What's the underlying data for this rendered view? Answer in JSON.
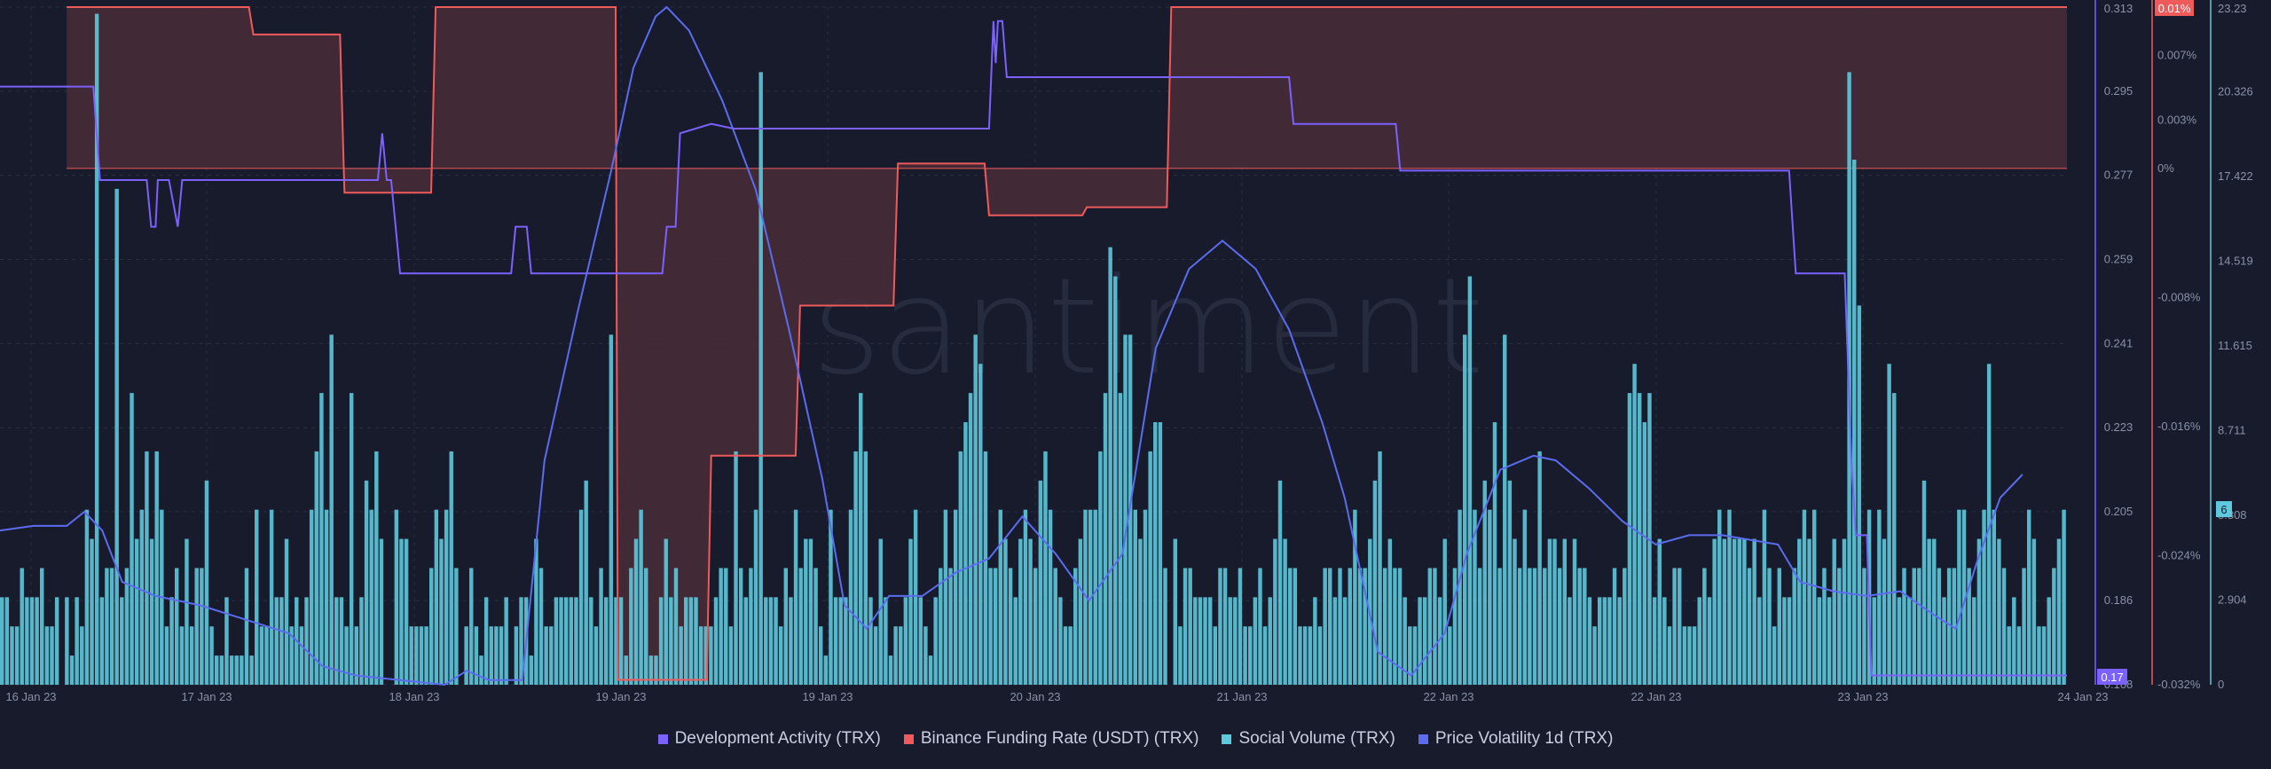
{
  "watermark": "santiment",
  "colors": {
    "background": "#171b2b",
    "grid": "#2a2f42",
    "dev_activity": "#7b61ff",
    "funding_rate": "#ef5b5b",
    "funding_fill": "#4a2b38",
    "social_volume": "#5ec9dc",
    "price_volatility": "#5c6cf0"
  },
  "legend": {
    "dev": "Development Activity (TRX)",
    "funding": "Binance Funding Rate (USDT) (TRX)",
    "social": "Social Volume (TRX)",
    "volatility": "Price Volatility 1d (TRX)"
  },
  "badges": {
    "dev_value": "0.17",
    "funding_value": "0.01%",
    "social_value": "6"
  },
  "chart_data": {
    "type": "line",
    "x_ticks": [
      "16 Jan 23",
      "17 Jan 23",
      "18 Jan 23",
      "19 Jan 23",
      "19 Jan 23",
      "20 Jan 23",
      "21 Jan 23",
      "22 Jan 23",
      "22 Jan 23",
      "23 Jan 23",
      "24 Jan 23"
    ],
    "x_range_days": [
      0,
      8
    ],
    "axes": {
      "dev_activity": {
        "ticks": [
          "0.313",
          "0.295",
          "0.277",
          "0.259",
          "0.241",
          "0.223",
          "0.205",
          "0.186",
          "0.168"
        ],
        "range": [
          0.168,
          0.313
        ]
      },
      "funding_rate": {
        "ticks": [
          "0.01%",
          "0.007%",
          "0.003%",
          "0%",
          "-0.008%",
          "-0.016%",
          "-0.024%",
          "-0.032%"
        ],
        "range": [
          -0.032,
          0.01
        ]
      },
      "social_volume": {
        "ticks": [
          "23.23",
          "20.326",
          "17.422",
          "14.519",
          "11.615",
          "8.711",
          "5.808",
          "2.904",
          "0"
        ],
        "range": [
          0,
          23.23
        ]
      }
    },
    "series": [
      {
        "name": "Development Activity (TRX)",
        "axis": "dev_activity",
        "points": [
          [
            0.0,
            0.296
          ],
          [
            0.42,
            0.296
          ],
          [
            0.45,
            0.276
          ],
          [
            0.66,
            0.276
          ],
          [
            0.68,
            0.266
          ],
          [
            0.7,
            0.266
          ],
          [
            0.71,
            0.276
          ],
          [
            0.76,
            0.276
          ],
          [
            0.8,
            0.266
          ],
          [
            0.82,
            0.276
          ],
          [
            1.7,
            0.276
          ],
          [
            1.72,
            0.286
          ],
          [
            1.74,
            0.276
          ],
          [
            1.76,
            0.276
          ],
          [
            1.78,
            0.266
          ],
          [
            1.8,
            0.256
          ],
          [
            2.3,
            0.256
          ],
          [
            2.32,
            0.266
          ],
          [
            2.37,
            0.266
          ],
          [
            2.39,
            0.256
          ],
          [
            2.98,
            0.256
          ],
          [
            3.0,
            0.266
          ],
          [
            3.04,
            0.266
          ],
          [
            3.06,
            0.286
          ],
          [
            3.2,
            0.288
          ],
          [
            3.3,
            0.287
          ],
          [
            4.0,
            0.287
          ],
          [
            4.45,
            0.287
          ],
          [
            4.47,
            0.31
          ],
          [
            4.48,
            0.301
          ],
          [
            4.49,
            0.31
          ],
          [
            4.51,
            0.31
          ],
          [
            4.53,
            0.298
          ],
          [
            5.8,
            0.298
          ],
          [
            5.82,
            0.288
          ],
          [
            6.28,
            0.288
          ],
          [
            6.3,
            0.278
          ],
          [
            8.0,
            0.278
          ],
          [
            8.05,
            0.278
          ],
          [
            8.08,
            0.256
          ],
          [
            8.3,
            0.256
          ],
          [
            8.33,
            0.216
          ],
          [
            8.35,
            0.2
          ],
          [
            8.4,
            0.2
          ],
          [
            8.42,
            0.17
          ],
          [
            8.6,
            0.17
          ],
          [
            9.3,
            0.17
          ]
        ]
      },
      {
        "name": "Binance Funding Rate (USDT) (TRX)",
        "axis": "funding_rate",
        "points": [
          [
            0.3,
            0.01
          ],
          [
            1.12,
            0.01
          ],
          [
            1.14,
            0.0083
          ],
          [
            1.53,
            0.0083
          ],
          [
            1.55,
            -0.0015
          ],
          [
            1.94,
            -0.0015
          ],
          [
            1.96,
            0.01
          ],
          [
            2.77,
            0.01
          ],
          [
            2.78,
            -0.0317
          ],
          [
            3.18,
            -0.0317
          ],
          [
            3.2,
            -0.0178
          ],
          [
            3.58,
            -0.0178
          ],
          [
            3.6,
            -0.0085
          ],
          [
            4.02,
            -0.0085
          ],
          [
            4.04,
            0.0003
          ],
          [
            4.43,
            0.0003
          ],
          [
            4.45,
            -0.0029
          ],
          [
            4.87,
            -0.0029
          ],
          [
            4.89,
            -0.0024
          ],
          [
            5.25,
            -0.0024
          ],
          [
            5.27,
            0.01
          ],
          [
            9.3,
            0.01
          ]
        ]
      },
      {
        "name": "Price Volatility 1d (TRX)",
        "axis": "dev_activity",
        "points": [
          [
            0.0,
            0.201
          ],
          [
            0.15,
            0.202
          ],
          [
            0.3,
            0.202
          ],
          [
            0.38,
            0.205
          ],
          [
            0.46,
            0.201
          ],
          [
            0.55,
            0.19
          ],
          [
            0.7,
            0.187
          ],
          [
            0.9,
            0.185
          ],
          [
            1.1,
            0.182
          ],
          [
            1.3,
            0.179
          ],
          [
            1.45,
            0.172
          ],
          [
            1.6,
            0.17
          ],
          [
            1.8,
            0.169
          ],
          [
            2.0,
            0.168
          ],
          [
            2.1,
            0.171
          ],
          [
            2.2,
            0.169
          ],
          [
            2.35,
            0.169
          ],
          [
            2.45,
            0.216
          ],
          [
            2.6,
            0.248
          ],
          [
            2.75,
            0.278
          ],
          [
            2.85,
            0.3
          ],
          [
            2.95,
            0.311
          ],
          [
            3.0,
            0.313
          ],
          [
            3.1,
            0.308
          ],
          [
            3.25,
            0.293
          ],
          [
            3.4,
            0.274
          ],
          [
            3.55,
            0.244
          ],
          [
            3.7,
            0.212
          ],
          [
            3.8,
            0.185
          ],
          [
            3.9,
            0.18
          ],
          [
            4.0,
            0.187
          ],
          [
            4.15,
            0.187
          ],
          [
            4.3,
            0.192
          ],
          [
            4.45,
            0.195
          ],
          [
            4.6,
            0.204
          ],
          [
            4.75,
            0.196
          ],
          [
            4.9,
            0.186
          ],
          [
            5.05,
            0.196
          ],
          [
            5.2,
            0.24
          ],
          [
            5.35,
            0.257
          ],
          [
            5.5,
            0.263
          ],
          [
            5.65,
            0.257
          ],
          [
            5.8,
            0.244
          ],
          [
            5.95,
            0.224
          ],
          [
            6.05,
            0.208
          ],
          [
            6.2,
            0.175
          ],
          [
            6.35,
            0.17
          ],
          [
            6.5,
            0.179
          ],
          [
            6.6,
            0.196
          ],
          [
            6.75,
            0.214
          ],
          [
            6.9,
            0.217
          ],
          [
            7.0,
            0.216
          ],
          [
            7.15,
            0.21
          ],
          [
            7.3,
            0.203
          ],
          [
            7.45,
            0.198
          ],
          [
            7.6,
            0.2
          ],
          [
            7.75,
            0.2
          ],
          [
            8.0,
            0.198
          ],
          [
            8.1,
            0.19
          ],
          [
            8.25,
            0.188
          ],
          [
            8.4,
            0.187
          ],
          [
            8.55,
            0.188
          ],
          [
            8.7,
            0.183
          ],
          [
            8.8,
            0.18
          ],
          [
            8.9,
            0.195
          ],
          [
            9.0,
            0.208
          ],
          [
            9.1,
            0.213
          ]
        ]
      },
      {
        "name": "Social Volume (TRX)",
        "axis": "social_volume",
        "type": "bar",
        "values": [
          3,
          3,
          2,
          2,
          4,
          3,
          3,
          3,
          4,
          2,
          2,
          3,
          0,
          3,
          1,
          3,
          2,
          6,
          5,
          23,
          3,
          4,
          4,
          17,
          3,
          4,
          10,
          5,
          6,
          8,
          5,
          8,
          6,
          2,
          3,
          4,
          2,
          5,
          2,
          4,
          4,
          7,
          2,
          1,
          1,
          3,
          1,
          1,
          1,
          4,
          1,
          6,
          2,
          2,
          6,
          3,
          3,
          5,
          2,
          3,
          2,
          3,
          6,
          8,
          10,
          6,
          12,
          3,
          3,
          2,
          10,
          2,
          3,
          7,
          6,
          8,
          5,
          0,
          0,
          6,
          5,
          5,
          2,
          2,
          2,
          2,
          4,
          6,
          5,
          6,
          8,
          4,
          0,
          2,
          4,
          2,
          1,
          3,
          2,
          2,
          2,
          3,
          0,
          2,
          3,
          3,
          1,
          5,
          4,
          2,
          2,
          3,
          3,
          3,
          3,
          3,
          6,
          7,
          3,
          2,
          4,
          3,
          12,
          3,
          3,
          1,
          4,
          5,
          6,
          4,
          1,
          1,
          3,
          5,
          3,
          4,
          2,
          3,
          3,
          3,
          2,
          2,
          2,
          3,
          4,
          4,
          2,
          8,
          4,
          3,
          4,
          6,
          21,
          3,
          3,
          3,
          2,
          4,
          3,
          6,
          4,
          5,
          5,
          4,
          2,
          1,
          6,
          3,
          3,
          3,
          6,
          8,
          10,
          8,
          3,
          2,
          5,
          3,
          1,
          2,
          2,
          3,
          5,
          6,
          3,
          2,
          1,
          3,
          4,
          6,
          4,
          6,
          8,
          9,
          10,
          12,
          11,
          8,
          4,
          4,
          6,
          5,
          4,
          3,
          5,
          6,
          5,
          4,
          7,
          8,
          6,
          4,
          3,
          2,
          2,
          4,
          5,
          6,
          6,
          6,
          8,
          10,
          15,
          14,
          10,
          12,
          12,
          6,
          5,
          6,
          8,
          9,
          9,
          4,
          0,
          5,
          2,
          4,
          4,
          3,
          3,
          3,
          3,
          2,
          4,
          4,
          3,
          3,
          4,
          2,
          2,
          3,
          4,
          2,
          3,
          5,
          7,
          5,
          4,
          4,
          2,
          2,
          2,
          3,
          2,
          4,
          4,
          3,
          4,
          3,
          4,
          6,
          4,
          4,
          5,
          7,
          8,
          4,
          5,
          4,
          4,
          3,
          2,
          2,
          3,
          3,
          4,
          4,
          3,
          5,
          2,
          4,
          6,
          12,
          14,
          6,
          4,
          7,
          6,
          9,
          4,
          12,
          7,
          5,
          4,
          6,
          4,
          4,
          8,
          4,
          5,
          5,
          4,
          5,
          3,
          5,
          4,
          4,
          3,
          2,
          3,
          3,
          3,
          4,
          3,
          4,
          10,
          11,
          10,
          9,
          10,
          3,
          5,
          3,
          2,
          4,
          4,
          2,
          2,
          2,
          3,
          4,
          3,
          5,
          6,
          5,
          6,
          5,
          5,
          5,
          4,
          5,
          3,
          6,
          4,
          2,
          4,
          3,
          3,
          4,
          5,
          6,
          5,
          6,
          3,
          4,
          3,
          5,
          4,
          5,
          21,
          18,
          13,
          4,
          6,
          3,
          6,
          5,
          11,
          10,
          3,
          4,
          3,
          4,
          4,
          7,
          5,
          5,
          4,
          3,
          4,
          4,
          6,
          6,
          4,
          3,
          5,
          6,
          11,
          6,
          5,
          4,
          2,
          3,
          2,
          4,
          6,
          5,
          2,
          2,
          3,
          4,
          5,
          6
        ],
        "x_start": 0,
        "x_end": 9.3
      }
    ]
  }
}
